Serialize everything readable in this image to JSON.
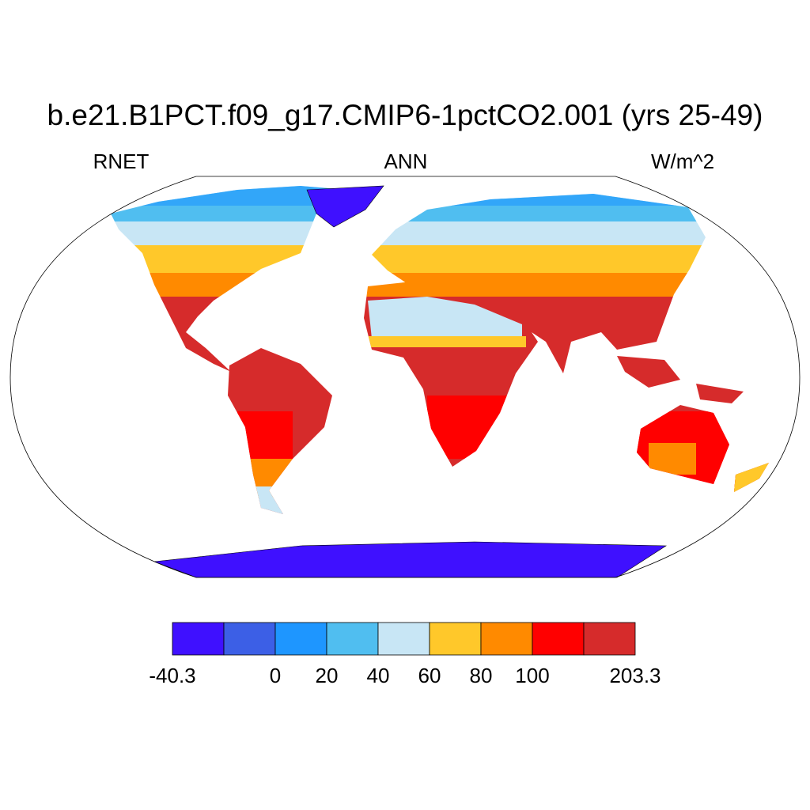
{
  "title": "b.e21.B1PCT.f09_g17.CMIP6-1pctCO2.001 (yrs 25-49)",
  "left_string": "RNET",
  "center_string": "ANN",
  "right_string": "W/m^2",
  "colorbar": {
    "colors": [
      "#3f10ff",
      "#3c5fe6",
      "#1e96ff",
      "#50bef0",
      "#c8e6f5",
      "#ffc82a",
      "#ff8a00",
      "#ff0000",
      "#d62b2b"
    ],
    "labels": [
      -40.3,
      null,
      0,
      20,
      40,
      60,
      80,
      100,
      null,
      203.3
    ]
  }
}
